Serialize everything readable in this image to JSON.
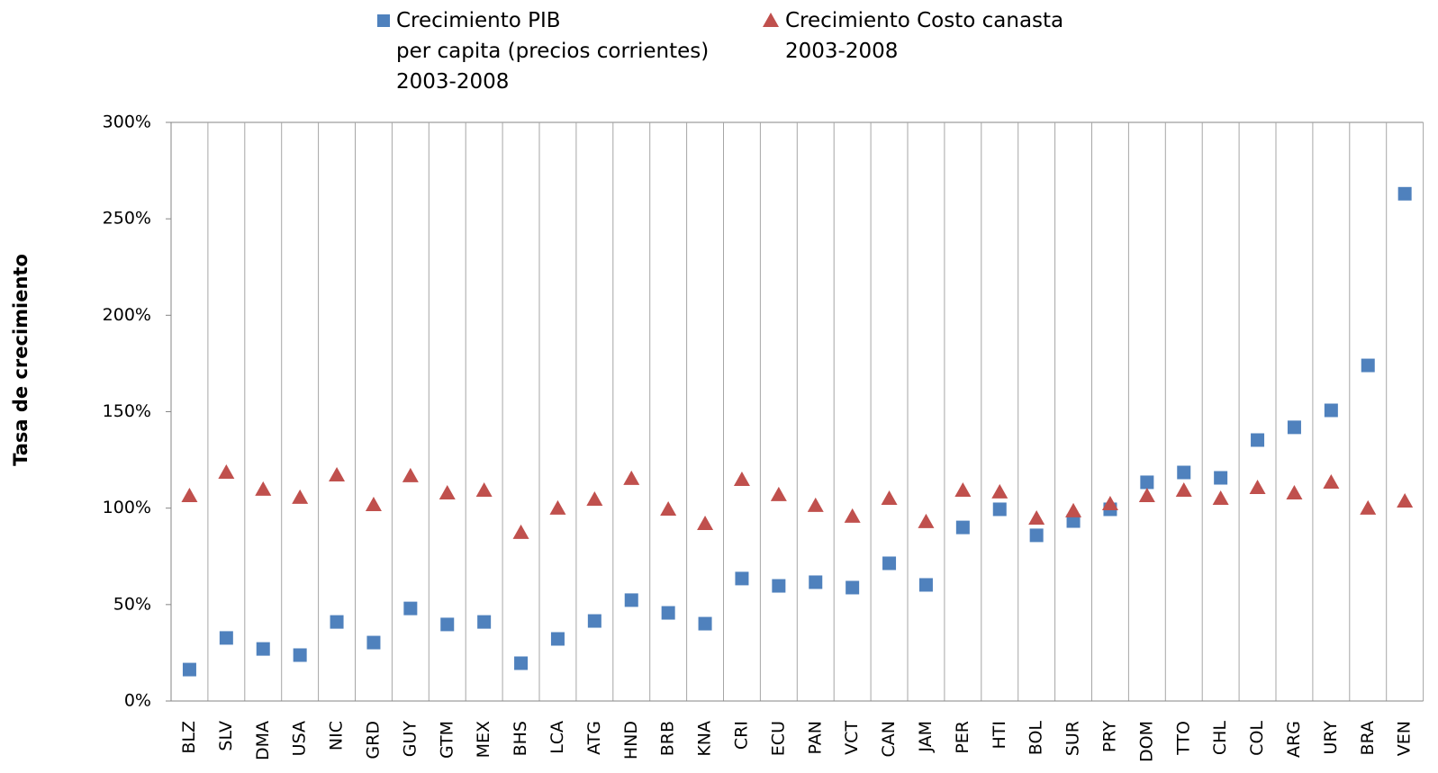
{
  "chart_data": {
    "type": "scatter",
    "y_axis_label": "Tasa de crecimiento",
    "categories": [
      "BLZ",
      "SLV",
      "DMA",
      "USA",
      "NIC",
      "GRD",
      "GUY",
      "GTM",
      "MEX",
      "BHS",
      "LCA",
      "ATG",
      "HND",
      "BRB",
      "KNA",
      "CRI",
      "ECU",
      "PAN",
      "VCT",
      "CAN",
      "JAM",
      "PER",
      "HTI",
      "BOL",
      "SUR",
      "PRY",
      "DOM",
      "TTO",
      "CHL",
      "COL",
      "ARG",
      "URY",
      "BRA",
      "VEN"
    ],
    "series": [
      {
        "name": "Crecimiento PIB\nper capita (precios corrientes)\n2003-2008",
        "color": "#4f81bd",
        "marker": "square",
        "values": [
          16.3,
          32.7,
          27,
          23.8,
          41,
          30.3,
          48,
          39.7,
          41,
          19.6,
          32.2,
          41.5,
          52.3,
          45.7,
          40.1,
          63.5,
          59.7,
          61.6,
          58.8,
          71.4,
          60.2,
          90,
          99.4,
          85.9,
          93.3,
          99.4,
          113.4,
          118.5,
          115.7,
          135.3,
          141.9,
          150.7,
          174,
          263
        ]
      },
      {
        "name": "Crecimiento Costo canasta\n2003-2008",
        "color": "#c0504d",
        "marker": "triangle",
        "values": [
          106.4,
          118.5,
          109.7,
          105.5,
          117.1,
          101.7,
          116.7,
          107.8,
          109.2,
          87.3,
          99.9,
          104.5,
          115.3,
          99.4,
          91.9,
          114.8,
          106.9,
          101.3,
          95.7,
          105,
          92.9,
          109.2,
          108.3,
          94.7,
          98.5,
          102.2,
          106.4,
          109.2,
          105,
          110.6,
          107.8,
          113.4,
          99.9,
          103.6
        ]
      }
    ],
    "ylim": [
      0,
      300
    ],
    "yticks": [
      {
        "value": 0,
        "label": "0%"
      },
      {
        "value": 50,
        "label": "50%"
      },
      {
        "value": 100,
        "label": "100%"
      },
      {
        "value": 150,
        "label": "150%"
      },
      {
        "value": 200,
        "label": "200%"
      },
      {
        "value": 250,
        "label": "250%"
      },
      {
        "value": 300,
        "label": "300%"
      }
    ],
    "grid": true,
    "legend": "top"
  }
}
